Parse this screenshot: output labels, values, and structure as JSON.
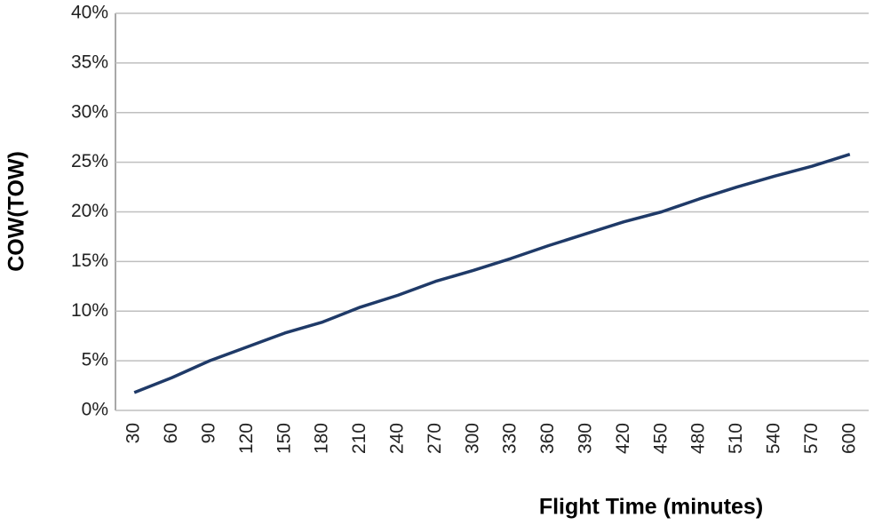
{
  "chart_data": {
    "type": "line",
    "x_label": "Flight Time (minutes)",
    "y_label": "COW(TOW)",
    "categories": [
      "30",
      "60",
      "90",
      "120",
      "150",
      "180",
      "210",
      "240",
      "270",
      "300",
      "330",
      "360",
      "390",
      "420",
      "450",
      "480",
      "510",
      "540",
      "570",
      "600"
    ],
    "values": [
      1.8,
      3.3,
      5.0,
      6.4,
      7.8,
      8.9,
      10.4,
      11.6,
      13.0,
      14.1,
      15.3,
      16.6,
      17.8,
      19.0,
      20.0,
      21.3,
      22.5,
      23.6,
      24.6,
      25.8
    ],
    "color": "#1f3a68",
    "ylim": [
      0,
      40
    ],
    "yticks": [
      {
        "value": 0,
        "label": "0%"
      },
      {
        "value": 5,
        "label": "5%"
      },
      {
        "value": 10,
        "label": "10%"
      },
      {
        "value": 15,
        "label": "15%"
      },
      {
        "value": 20,
        "label": "20%"
      },
      {
        "value": 25,
        "label": "25%"
      },
      {
        "value": 30,
        "label": "30%"
      },
      {
        "value": 35,
        "label": "35%"
      },
      {
        "value": 40,
        "label": "40%"
      }
    ],
    "grid": true
  }
}
